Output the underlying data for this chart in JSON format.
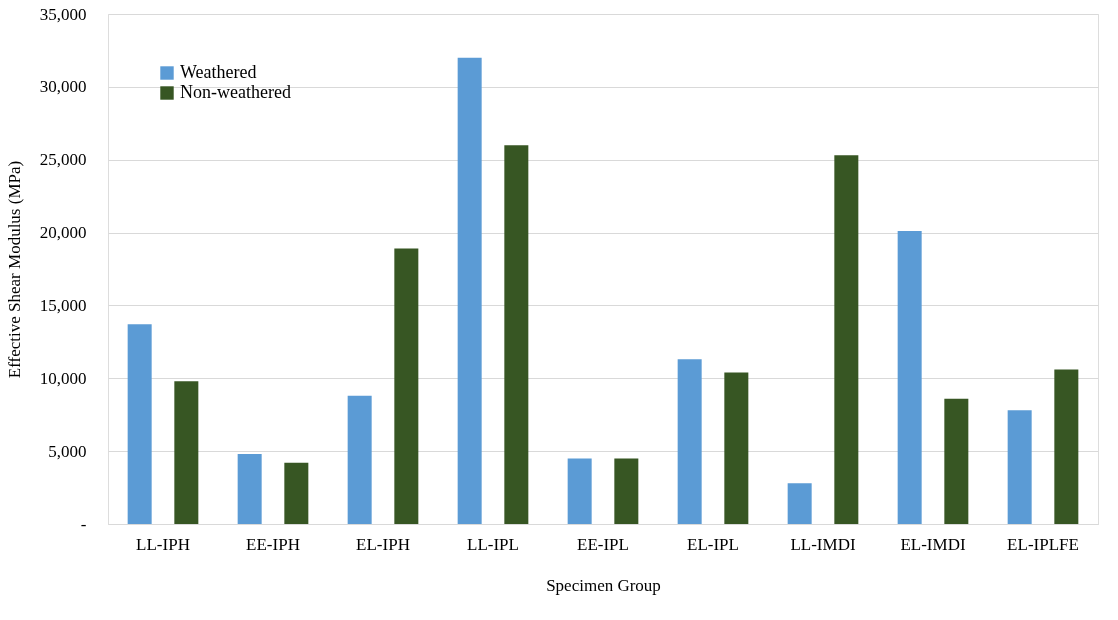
{
  "chart_data": {
    "type": "bar",
    "xlabel": "Specimen Group",
    "ylabel": "Effective Shear Modulus (MPa)",
    "categories": [
      "LL-IPH",
      "EE-IPH",
      "EL-IPH",
      "LL-IPL",
      "EE-IPL",
      "EL-IPL",
      "LL-IMDI",
      "EL-IMDI",
      "EL-IPLFE"
    ],
    "series": [
      {
        "name": "Weathered",
        "color": "#5b9bd5",
        "values": [
          13700,
          4800,
          8800,
          32000,
          4500,
          11300,
          2800,
          20100,
          7800
        ]
      },
      {
        "name": "Non-weathered",
        "color": "#375623",
        "values": [
          9800,
          4200,
          18900,
          26000,
          4500,
          10400,
          25300,
          8600,
          10600
        ]
      }
    ],
    "ylim": [
      0,
      35000
    ],
    "yticks": [
      {
        "value": 0,
        "label": "-"
      },
      {
        "value": 5000,
        "label": "5,000"
      },
      {
        "value": 10000,
        "label": "10,000"
      },
      {
        "value": 15000,
        "label": "15,000"
      },
      {
        "value": 20000,
        "label": "20,000"
      },
      {
        "value": 25000,
        "label": "25,000"
      },
      {
        "value": 30000,
        "label": "30,000"
      },
      {
        "value": 35000,
        "label": "35,000"
      }
    ],
    "grid": "y",
    "legend": "top left"
  }
}
